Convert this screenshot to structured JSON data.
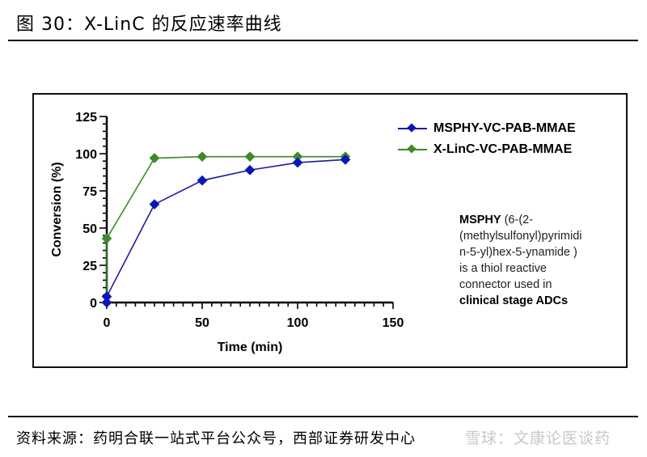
{
  "header": {
    "figure_title": "图 30：X-LinC 的反应速率曲线"
  },
  "footer": {
    "source": "资料来源：药明合联一站式平台公众号，西部证券研发中心",
    "watermark": "雪球：文康论医谈药"
  },
  "annotation": {
    "bold_prefix": "MSPHY",
    "line1_rest": " (6-(2-",
    "line2": "(methylsulfonyl)pyrimidi",
    "line3": "n-5-yl)hex-5-ynamide )",
    "line4": "is a thiol reactive",
    "line5": "connector used in",
    "line6_bold": "clinical stage ADCs"
  },
  "colors": {
    "blue": "#1a1aa8",
    "blue_marker": "#0a16b8",
    "green": "#3a8a28",
    "green_marker": "#3d8a2a",
    "axis": "#000000"
  },
  "chart_data": {
    "type": "line",
    "title": "X-LinC 的反应速率曲线",
    "xlabel": "Time (min)",
    "ylabel": "Conversion (%)",
    "xlim": [
      0,
      150
    ],
    "ylim": [
      0,
      125
    ],
    "x_ticks": [
      0,
      50,
      100,
      150
    ],
    "y_ticks": [
      0,
      25,
      50,
      75,
      100,
      125
    ],
    "grid": false,
    "legend_position": "upper right (outside plot area)",
    "series": [
      {
        "name": "MSPHY-VC-PAB-MMAE",
        "color": "#1a1aa8",
        "marker": "diamond",
        "x": [
          0,
          0,
          25,
          50,
          75,
          100,
          125
        ],
        "y": [
          0,
          4,
          66,
          82,
          89,
          94,
          96
        ]
      },
      {
        "name": "X-LinC-VC-PAB-MMAE",
        "color": "#3a8a28",
        "marker": "diamond",
        "x": [
          0,
          0,
          25,
          50,
          75,
          100,
          125
        ],
        "y": [
          0,
          43,
          97,
          98,
          98,
          98,
          98
        ]
      }
    ]
  }
}
